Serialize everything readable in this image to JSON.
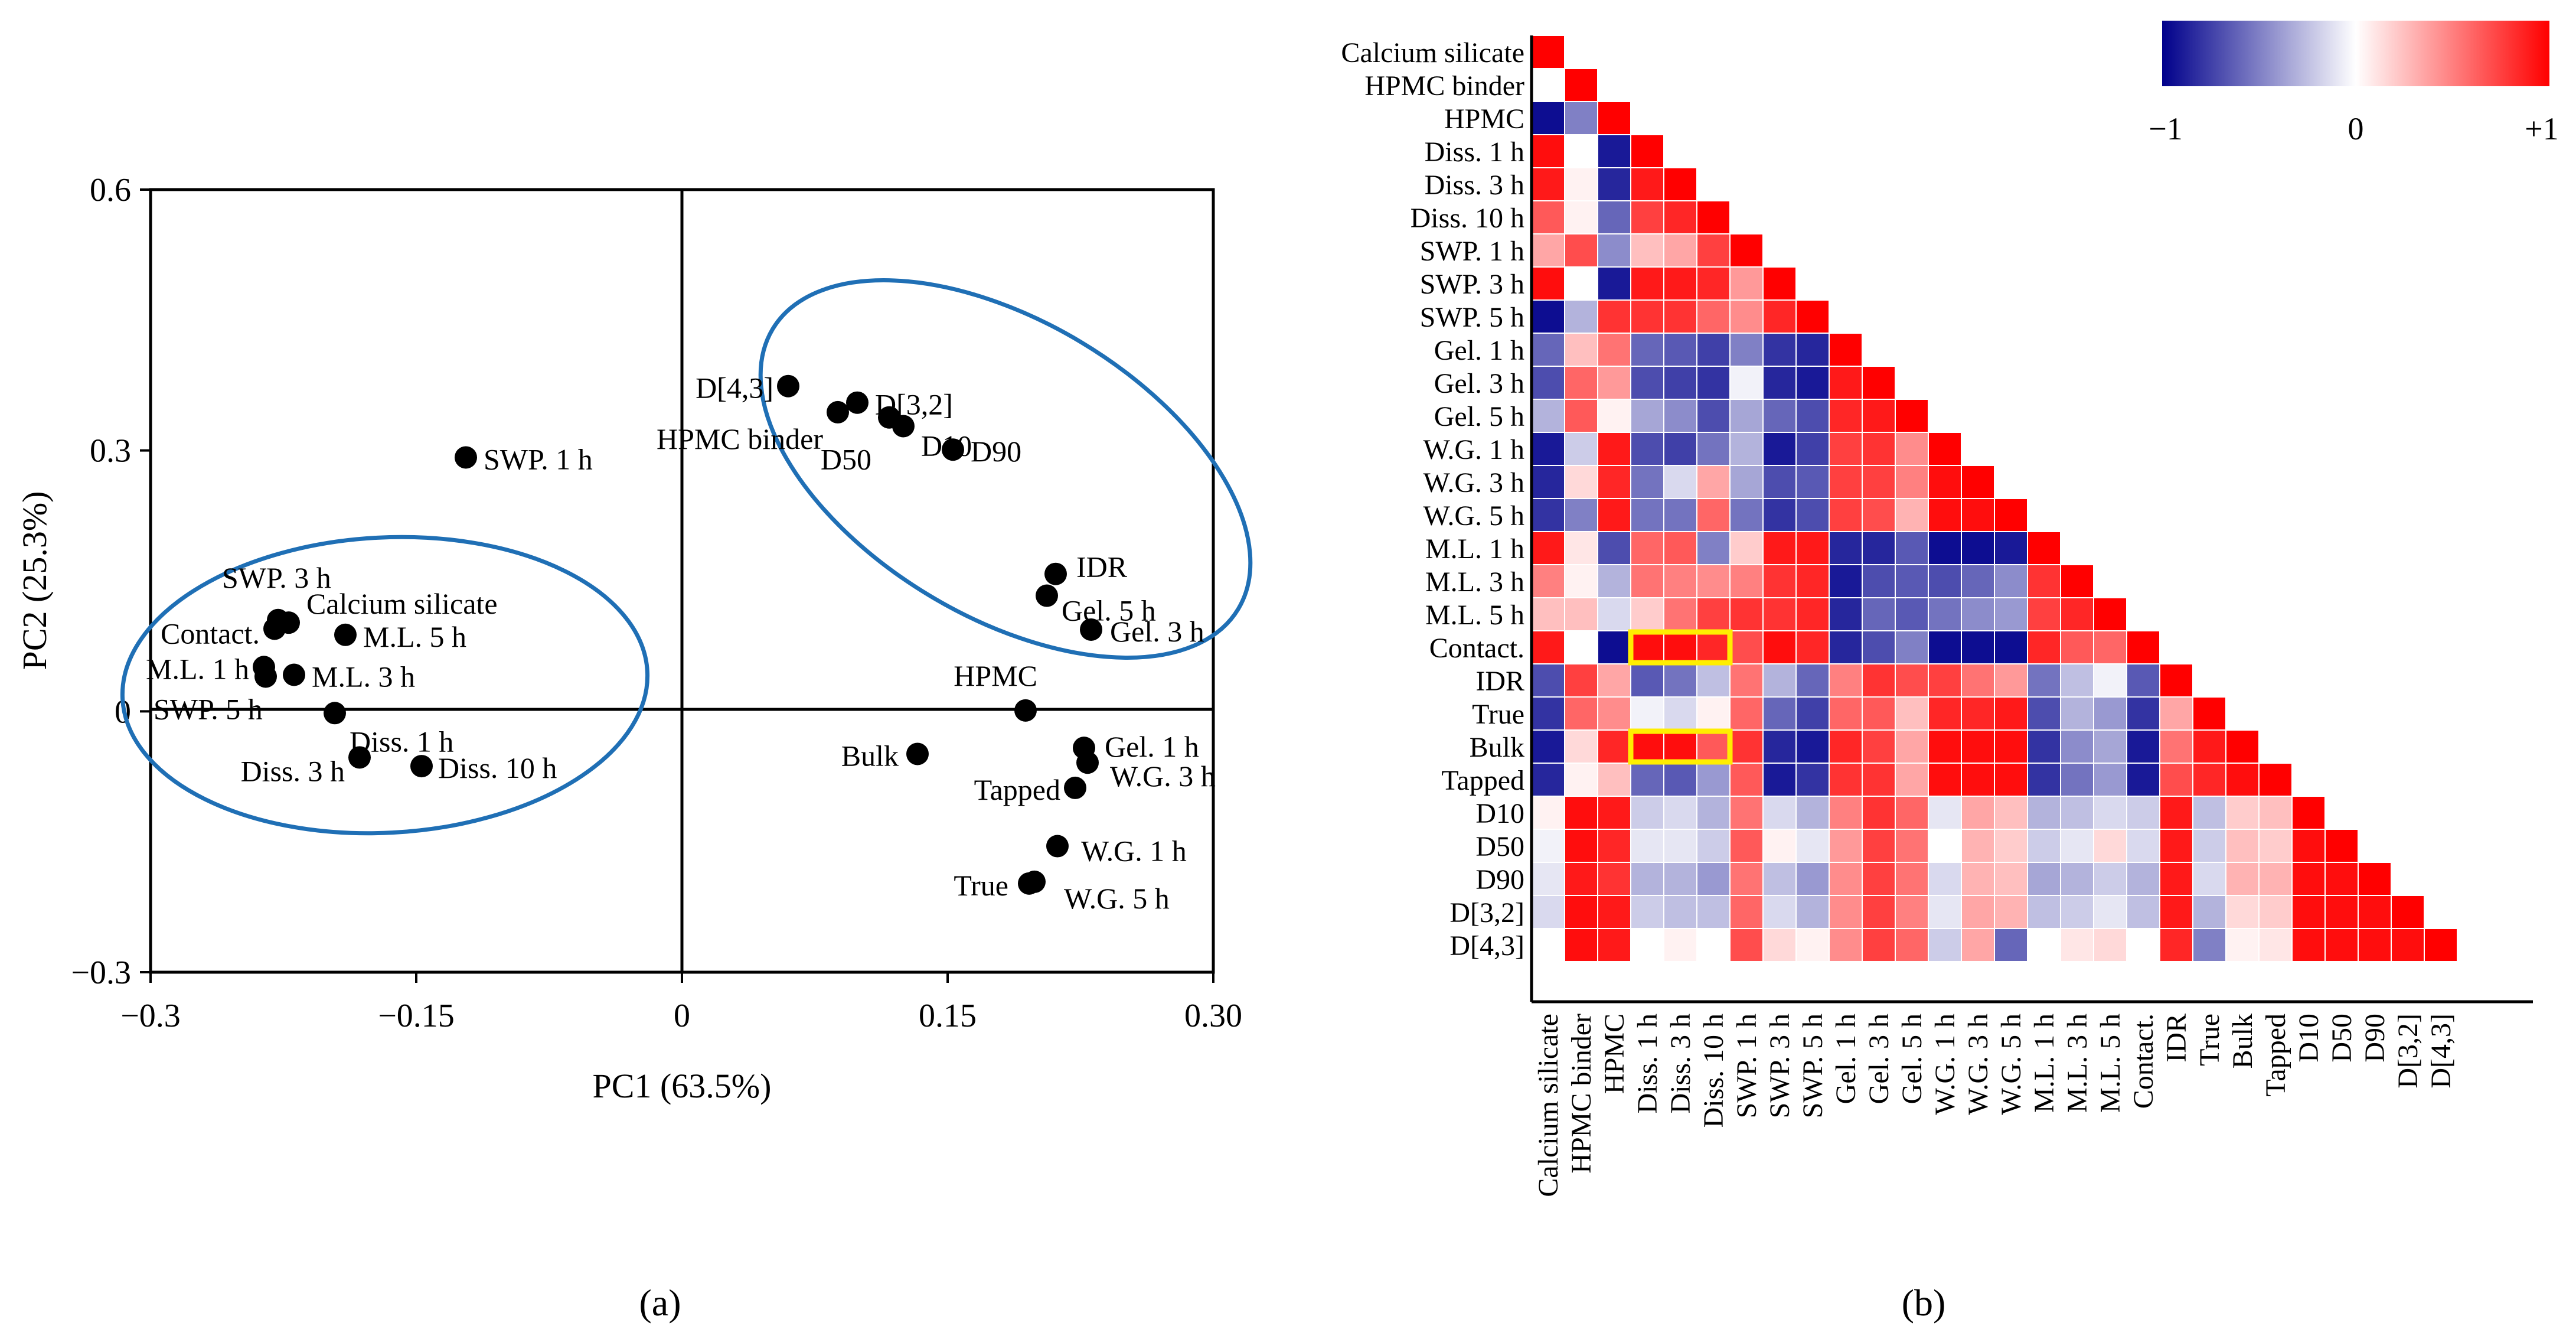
{
  "chart_data": [
    {
      "type": "scatter",
      "panel_label": "(a)",
      "xlabel": "PC1 (63.5%)",
      "ylabel": "PC2 (25.3%)",
      "xlim": [
        -0.3,
        0.3
      ],
      "ylim": [
        -0.3,
        0.6
      ],
      "x_ticks": [
        -0.3,
        -0.15,
        0,
        0.15,
        0.3
      ],
      "x_tick_labels": [
        "−0.3",
        "−0.15",
        "0",
        "0.15",
        "0.30"
      ],
      "y_ticks": [
        -0.3,
        0,
        0.3,
        0.6
      ],
      "y_tick_labels": [
        "−0.3",
        "0",
        "0.3",
        "0.6"
      ],
      "points": [
        {
          "label": "SWP. 1 h",
          "x": -0.122,
          "y": 0.292
        },
        {
          "label": "SWP. 3 h",
          "x": -0.228,
          "y": 0.105
        },
        {
          "label": "Calcium silicate",
          "x": -0.222,
          "y": 0.102
        },
        {
          "label": "Contact.",
          "x": -0.23,
          "y": 0.095
        },
        {
          "label": "M.L. 5 h",
          "x": -0.19,
          "y": 0.088
        },
        {
          "label": "M.L. 1 h",
          "x": -0.236,
          "y": 0.051
        },
        {
          "label": "M.L. 3 h",
          "x": -0.219,
          "y": 0.042
        },
        {
          "label": "SWP. 5 h",
          "x": -0.235,
          "y": 0.04
        },
        {
          "label": "Diss. 1 h",
          "x": -0.196,
          "y": -0.002
        },
        {
          "label": "Diss. 3 h",
          "x": -0.182,
          "y": -0.053
        },
        {
          "label": "Diss. 10 h",
          "x": -0.147,
          "y": -0.063
        },
        {
          "label": "D[4,3]",
          "x": 0.06,
          "y": 0.374
        },
        {
          "label": "D[3,2]",
          "x": 0.099,
          "y": 0.355
        },
        {
          "label": "HPMC binder",
          "x": 0.088,
          "y": 0.344
        },
        {
          "label": "D50",
          "x": 0.117,
          "y": 0.338
        },
        {
          "label": "D10",
          "x": 0.125,
          "y": 0.328
        },
        {
          "label": "D90",
          "x": 0.153,
          "y": 0.301
        },
        {
          "label": "IDR",
          "x": 0.211,
          "y": 0.158
        },
        {
          "label": "Gel. 5 h",
          "x": 0.206,
          "y": 0.133
        },
        {
          "label": "Gel. 3 h",
          "x": 0.231,
          "y": 0.094
        },
        {
          "label": "HPMC",
          "x": 0.194,
          "y": 0.001
        },
        {
          "label": "Gel. 1 h",
          "x": 0.227,
          "y": -0.042
        },
        {
          "label": "Bulk",
          "x": 0.133,
          "y": -0.049
        },
        {
          "label": "W.G. 3 h",
          "x": 0.229,
          "y": -0.059
        },
        {
          "label": "Tapped",
          "x": 0.222,
          "y": -0.088
        },
        {
          "label": "W.G. 1 h",
          "x": 0.212,
          "y": -0.155
        },
        {
          "label": "True",
          "x": 0.196,
          "y": -0.198
        },
        {
          "label": "W.G. 5 h",
          "x": 0.199,
          "y": -0.196
        }
      ],
      "annotations": [
        "left ellipse around dissolution / swelling / mass-loss cluster",
        "right ellipse around particle-size cluster"
      ],
      "ellipse_color": "#1f6fb5"
    },
    {
      "type": "heatmap",
      "panel_label": "(b)",
      "variables": [
        "Calcium silicate",
        "HPMC binder",
        "HPMC",
        "Diss. 1 h",
        "Diss. 3 h",
        "Diss. 10 h",
        "SWP. 1 h",
        "SWP. 3 h",
        "SWP. 5 h",
        "Gel. 1 h",
        "Gel. 3 h",
        "Gel. 5 h",
        "W.G. 1 h",
        "W.G. 3 h",
        "W.G. 5 h",
        "M.L. 1 h",
        "M.L. 3 h",
        "M.L. 5 h",
        "Contact.",
        "IDR",
        "True",
        "Bulk",
        "Tapped",
        "D10",
        "D50",
        "D90",
        "D[3,2]",
        "D[4,3]"
      ],
      "matrix_lower": [
        [
          1.0
        ],
        [
          0.0,
          1.0
        ],
        [
          -0.95,
          -0.5,
          1.0
        ],
        [
          0.95,
          0.0,
          -0.9,
          1.0
        ],
        [
          0.9,
          0.05,
          -0.85,
          0.9,
          1.0
        ],
        [
          0.65,
          0.05,
          -0.6,
          0.75,
          0.85,
          1.0
        ],
        [
          0.35,
          0.7,
          -0.45,
          0.25,
          0.35,
          0.75,
          1.0
        ],
        [
          0.95,
          0.0,
          -0.9,
          0.9,
          0.9,
          0.85,
          0.4,
          1.0
        ],
        [
          -0.95,
          -0.3,
          0.8,
          0.8,
          0.8,
          0.6,
          0.45,
          0.85,
          1.0
        ],
        [
          -0.6,
          0.25,
          0.55,
          -0.6,
          -0.65,
          -0.75,
          -0.5,
          -0.8,
          -0.85,
          1.0
        ],
        [
          -0.7,
          0.6,
          0.4,
          -0.7,
          -0.75,
          -0.8,
          -0.05,
          -0.85,
          -0.9,
          0.9,
          1.0
        ],
        [
          -0.3,
          0.65,
          0.05,
          -0.35,
          -0.45,
          -0.7,
          -0.35,
          -0.6,
          -0.7,
          0.85,
          0.9,
          1.0
        ],
        [
          -0.9,
          -0.2,
          0.9,
          -0.7,
          -0.75,
          -0.55,
          -0.3,
          -0.9,
          -0.75,
          0.75,
          0.8,
          0.45,
          1.0
        ],
        [
          -0.85,
          0.15,
          0.85,
          -0.55,
          -0.15,
          0.35,
          -0.35,
          -0.7,
          -0.65,
          0.75,
          0.75,
          0.5,
          0.95,
          1.0
        ],
        [
          -0.8,
          -0.5,
          0.9,
          -0.55,
          -0.55,
          0.6,
          -0.55,
          -0.8,
          -0.7,
          0.75,
          0.7,
          0.3,
          0.95,
          0.95,
          1.0
        ],
        [
          0.9,
          0.1,
          -0.7,
          0.6,
          0.65,
          -0.5,
          0.2,
          0.9,
          0.9,
          -0.85,
          -0.85,
          -0.65,
          -0.95,
          -0.95,
          -0.9,
          1.0
        ],
        [
          0.5,
          0.05,
          -0.3,
          0.55,
          0.5,
          0.45,
          0.5,
          0.8,
          0.85,
          -0.9,
          -0.7,
          -0.65,
          -0.7,
          -0.6,
          -0.45,
          0.8,
          1.0
        ],
        [
          0.25,
          0.25,
          -0.15,
          0.2,
          0.55,
          0.75,
          0.8,
          0.8,
          0.85,
          -0.85,
          -0.6,
          -0.65,
          -0.55,
          -0.45,
          -0.4,
          0.75,
          0.85,
          1.0
        ],
        [
          0.9,
          0.0,
          -0.95,
          0.95,
          0.95,
          0.85,
          0.7,
          0.95,
          0.85,
          -0.85,
          -0.7,
          -0.5,
          -0.95,
          -0.95,
          -0.95,
          0.85,
          0.65,
          0.6,
          1.0
        ],
        [
          -0.7,
          0.75,
          0.35,
          -0.65,
          -0.55,
          -0.25,
          0.55,
          -0.3,
          -0.6,
          0.5,
          0.8,
          0.7,
          0.75,
          0.55,
          0.4,
          -0.55,
          -0.25,
          -0.05,
          -0.65,
          1.0
        ],
        [
          -0.8,
          0.6,
          0.45,
          -0.05,
          -0.15,
          0.05,
          0.6,
          -0.6,
          -0.75,
          0.6,
          0.65,
          0.25,
          0.85,
          0.85,
          0.9,
          -0.7,
          -0.3,
          -0.4,
          -0.8,
          0.35,
          1.0
        ],
        [
          -0.9,
          0.15,
          0.85,
          0.95,
          0.95,
          0.65,
          0.8,
          -0.85,
          -0.9,
          0.85,
          0.75,
          0.35,
          0.95,
          0.95,
          0.95,
          -0.8,
          -0.45,
          -0.35,
          -0.9,
          0.55,
          0.9,
          1.0
        ],
        [
          -0.85,
          0.05,
          0.25,
          -0.6,
          -0.65,
          -0.4,
          0.65,
          -0.9,
          -0.8,
          0.8,
          0.8,
          0.35,
          0.95,
          0.95,
          0.95,
          -0.8,
          -0.55,
          -0.4,
          -0.9,
          0.7,
          0.85,
          0.95,
          1.0
        ],
        [
          0.05,
          0.95,
          0.9,
          -0.2,
          -0.15,
          -0.3,
          0.55,
          -0.15,
          -0.3,
          0.5,
          0.8,
          0.6,
          -0.1,
          0.35,
          0.25,
          -0.3,
          -0.25,
          -0.15,
          -0.2,
          0.9,
          -0.25,
          0.2,
          0.25,
          1.0
        ],
        [
          -0.05,
          0.95,
          0.85,
          -0.1,
          -0.1,
          -0.2,
          0.65,
          0.05,
          -0.1,
          0.4,
          0.75,
          0.55,
          0.0,
          0.3,
          0.2,
          -0.2,
          -0.1,
          0.15,
          -0.15,
          0.9,
          -0.2,
          0.25,
          0.2,
          0.95,
          1.0
        ],
        [
          -0.1,
          0.9,
          0.8,
          -0.3,
          -0.3,
          -0.4,
          0.55,
          -0.25,
          -0.4,
          0.45,
          0.75,
          0.55,
          -0.15,
          0.3,
          0.25,
          -0.35,
          -0.3,
          -0.2,
          -0.3,
          0.9,
          -0.15,
          0.3,
          0.3,
          0.95,
          0.95,
          1.0
        ],
        [
          -0.15,
          0.95,
          0.9,
          -0.2,
          -0.25,
          -0.25,
          0.6,
          -0.15,
          -0.3,
          0.45,
          0.75,
          0.5,
          -0.1,
          0.35,
          0.3,
          -0.25,
          -0.2,
          -0.1,
          -0.25,
          0.9,
          -0.3,
          0.15,
          0.2,
          0.95,
          0.95,
          0.95,
          1.0
        ],
        [
          0.0,
          0.95,
          0.9,
          0.0,
          0.05,
          0.0,
          0.7,
          0.15,
          0.05,
          0.45,
          0.75,
          0.6,
          -0.2,
          0.35,
          -0.6,
          0.0,
          0.1,
          0.15,
          0.0,
          0.85,
          -0.5,
          0.05,
          0.1,
          0.95,
          0.95,
          0.95,
          0.95,
          1.0
        ]
      ],
      "highlights": [
        {
          "row": "Contact.",
          "columns": [
            "Diss. 1 h",
            "Diss. 3 h",
            "Diss. 10 h"
          ]
        },
        {
          "row": "Bulk",
          "columns": [
            "Diss. 1 h",
            "Diss. 3 h",
            "Diss. 10 h"
          ]
        }
      ],
      "highlight_color": "#ffee00",
      "colorbar": {
        "min": -1,
        "max": 1,
        "tick_labels": [
          "−1",
          "0",
          "+1"
        ],
        "low_color": "#00008b",
        "mid_color": "#ffffff",
        "high_color": "#ff0000"
      }
    }
  ]
}
